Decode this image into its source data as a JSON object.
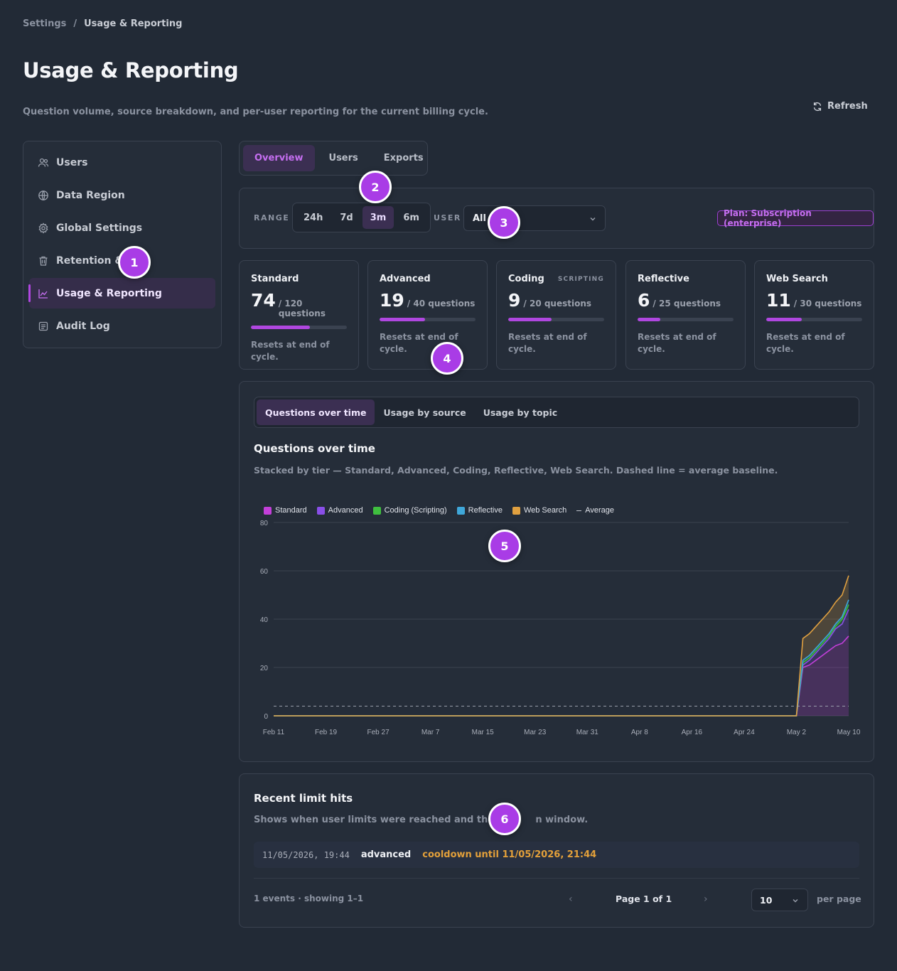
{
  "breadcrumb": {
    "root": "Settings",
    "separator": "/",
    "current": "Usage & Reporting"
  },
  "page": {
    "title": "Usage & Reporting",
    "subtitle": "Question volume, source breakdown, and per-user reporting for the current billing cycle.",
    "refresh_label": "Refresh"
  },
  "sidebar": {
    "items": [
      {
        "label": "Users",
        "icon": "users-icon"
      },
      {
        "label": "Data Region",
        "icon": "globe-icon"
      },
      {
        "label": "Global Settings",
        "icon": "gear-icon"
      },
      {
        "label": "Retention &",
        "icon": "trash-icon"
      },
      {
        "label": "Usage & Reporting",
        "icon": "chart-icon",
        "active": true
      },
      {
        "label": "Audit Log",
        "icon": "log-icon"
      }
    ]
  },
  "tabs": [
    "Overview",
    "Users",
    "Exports"
  ],
  "filters": {
    "range_label": "RANGE",
    "ranges": [
      "24h",
      "7d",
      "3m",
      "6m"
    ],
    "selected_range": "3m",
    "user_label": "USER",
    "user_value": "All",
    "plan_badge": "Plan: Subscription (enterprise)"
  },
  "cards": [
    {
      "title": "Standard",
      "tag": "",
      "used": "74",
      "limit": "/ 120 questions",
      "fill": 0.617,
      "note": "Resets at end of cycle."
    },
    {
      "title": "Advanced",
      "tag": "",
      "used": "19",
      "limit": "/ 40 questions",
      "fill": 0.475,
      "note": "Resets at end of cycle."
    },
    {
      "title": "Coding",
      "tag": "SCRIPTING",
      "used": "9",
      "limit": "/ 20 questions",
      "fill": 0.45,
      "note": "Resets at end of cycle."
    },
    {
      "title": "Reflective",
      "tag": "",
      "used": "6",
      "limit": "/ 25 questions",
      "fill": 0.24,
      "note": "Resets at end of cycle."
    },
    {
      "title": "Web Search",
      "tag": "",
      "used": "11",
      "limit": "/ 30 questions",
      "fill": 0.367,
      "note": "Resets at end of cycle."
    }
  ],
  "chart_section": {
    "tabs": [
      "Questions over time",
      "Usage by source",
      "Usage by topic"
    ],
    "title": "Questions over time",
    "subtitle": "Stacked by tier — Standard, Advanced, Coding, Reflective, Web Search. Dashed line = average baseline."
  },
  "chart_data": {
    "type": "area",
    "stacked": true,
    "x": [
      "Feb 11",
      "Feb 19",
      "Feb 27",
      "Mar 7",
      "Mar 15",
      "Mar 23",
      "Mar 31",
      "Apr 8",
      "Apr 16",
      "Apr 24",
      "May 2",
      "May 3",
      "May 4",
      "May 5",
      "May 6",
      "May 7",
      "May 8",
      "May 9",
      "May 10"
    ],
    "x_tick_labels": [
      "Feb 11",
      "Feb 19",
      "Feb 27",
      "Mar 7",
      "Mar 15",
      "Mar 23",
      "Mar 31",
      "Apr 8",
      "Apr 16",
      "Apr 24",
      "May 2",
      "May 10"
    ],
    "series": [
      {
        "name": "Standard",
        "color": "#c33fd9",
        "values": [
          0,
          0,
          0,
          0,
          0,
          0,
          0,
          0,
          0,
          0,
          0,
          20,
          21,
          23,
          25,
          27,
          29,
          30,
          33
        ]
      },
      {
        "name": "Advanced",
        "color": "#8a4fe8",
        "values": [
          0,
          0,
          0,
          0,
          0,
          0,
          0,
          0,
          0,
          0,
          0,
          1,
          2,
          3,
          4,
          5,
          7,
          8,
          11
        ]
      },
      {
        "name": "Coding (Scripting)",
        "color": "#3fbf3f",
        "values": [
          0,
          0,
          0,
          0,
          0,
          0,
          0,
          0,
          0,
          0,
          0,
          1,
          1,
          1,
          1,
          1,
          1,
          2,
          2
        ]
      },
      {
        "name": "Reflective",
        "color": "#3fa7d9",
        "values": [
          0,
          0,
          0,
          0,
          0,
          0,
          0,
          0,
          0,
          0,
          0,
          1,
          1,
          1,
          1,
          1,
          1,
          1,
          2
        ]
      },
      {
        "name": "Web Search",
        "color": "#e0a040",
        "values": [
          0,
          0,
          0,
          0,
          0,
          0,
          0,
          0,
          0,
          0,
          0,
          9,
          9,
          9,
          9,
          9,
          9,
          9,
          10
        ]
      }
    ],
    "average": {
      "name": "Average",
      "value": 4
    },
    "ylim": [
      0,
      80
    ],
    "y_ticks": [
      0,
      20,
      40,
      60,
      80
    ],
    "grid": true,
    "legend": "top-left"
  },
  "hits": {
    "title": "Recent limit hits",
    "subtitle": "Shows when user limits were reached and the c",
    "subtitle_end": "n window.",
    "rows": [
      {
        "time": "11/05/2026, 19:44",
        "tier": "advanced",
        "cooldown": "cooldown until 11/05/2026, 21:44"
      }
    ],
    "events": "1 events · showing 1–1",
    "page_label": "Page 1 of 1",
    "per_page_value": "10",
    "per_page_label": "per page"
  },
  "markers": [
    "1",
    "2",
    "3",
    "4",
    "5",
    "6"
  ]
}
